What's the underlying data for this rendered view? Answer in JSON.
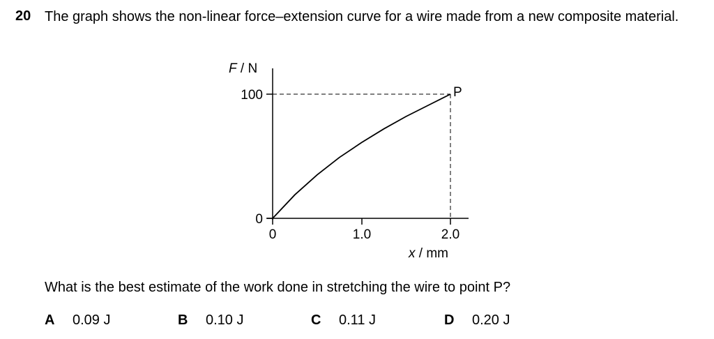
{
  "question": {
    "number": "20",
    "stem": "The graph shows the non-linear force–extension curve for a wire made from a new composite material.",
    "prompt": "What is the best estimate of the work done in stretching the wire to point P?"
  },
  "options": [
    {
      "letter": "A",
      "value": "0.09 J"
    },
    {
      "letter": "B",
      "value": "0.10 J"
    },
    {
      "letter": "C",
      "value": "0.11 J"
    },
    {
      "letter": "D",
      "value": "0.20 J"
    }
  ],
  "graph": {
    "y_axis_label_var": "F",
    "y_axis_label_unit": " / N",
    "x_axis_label_var": "x",
    "x_axis_label_unit": " / mm",
    "point_label": "P",
    "x_ticks": [
      "0",
      "1.0",
      "2.0"
    ],
    "y_ticks": [
      "0",
      "100"
    ]
  },
  "chart_data": {
    "type": "line",
    "xlabel": "x / mm",
    "ylabel": "F / N",
    "xlim": [
      0,
      2.0
    ],
    "ylim": [
      0,
      100
    ],
    "series": [
      {
        "x": [
          0,
          0.25,
          0.5,
          0.75,
          1.0,
          1.25,
          1.5,
          1.75,
          2.0
        ],
        "y": [
          0,
          19,
          35,
          49,
          61,
          72,
          82,
          91,
          100
        ]
      }
    ],
    "annotations": [
      {
        "label": "P",
        "x": 2.0,
        "y": 100
      }
    ]
  }
}
